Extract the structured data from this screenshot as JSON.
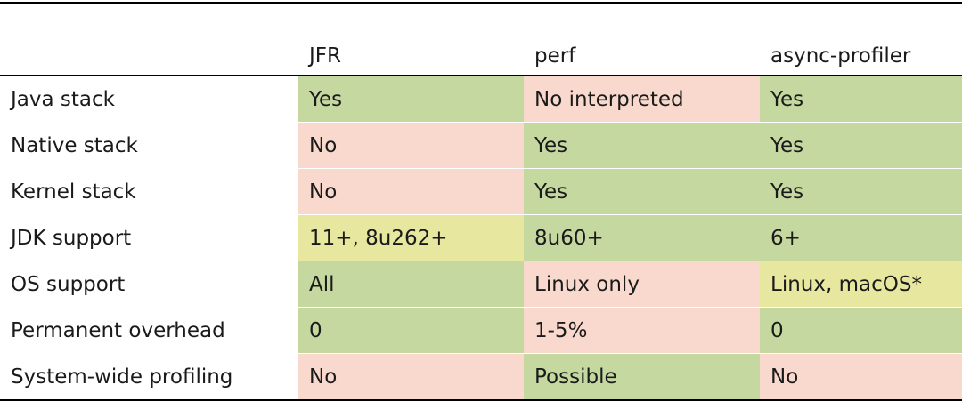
{
  "table": {
    "columns": [
      "JFR",
      "perf",
      "async-profiler"
    ],
    "rows": [
      {
        "label": "Java stack",
        "cells": [
          "Yes",
          "No interpreted",
          "Yes"
        ],
        "colors": [
          "#c5d8a0",
          "#f9d9cd",
          "#c5d8a0"
        ]
      },
      {
        "label": "Native stack",
        "cells": [
          "No",
          "Yes",
          "Yes"
        ],
        "colors": [
          "#f9d9cd",
          "#c5d8a0",
          "#c5d8a0"
        ]
      },
      {
        "label": "Kernel stack",
        "cells": [
          "No",
          "Yes",
          "Yes"
        ],
        "colors": [
          "#f9d9cd",
          "#c5d8a0",
          "#c5d8a0"
        ]
      },
      {
        "label": "JDK support",
        "cells": [
          "11+, 8u262+",
          "8u60+",
          "6+"
        ],
        "colors": [
          "#e7e7a0",
          "#c5d8a0",
          "#c5d8a0"
        ]
      },
      {
        "label": "OS support",
        "cells": [
          "All",
          "Linux only",
          "Linux, macOS*"
        ],
        "colors": [
          "#c5d8a0",
          "#f9d9cd",
          "#e7e7a0"
        ]
      },
      {
        "label": "Permanent overhead",
        "cells": [
          "0",
          "1-5%",
          "0"
        ],
        "colors": [
          "#c5d8a0",
          "#f9d9cd",
          "#c5d8a0"
        ]
      },
      {
        "label": "System-wide profiling",
        "cells": [
          "No",
          "Possible",
          "No"
        ],
        "colors": [
          "#f9d9cd",
          "#c5d8a0",
          "#f9d9cd"
        ]
      }
    ]
  }
}
